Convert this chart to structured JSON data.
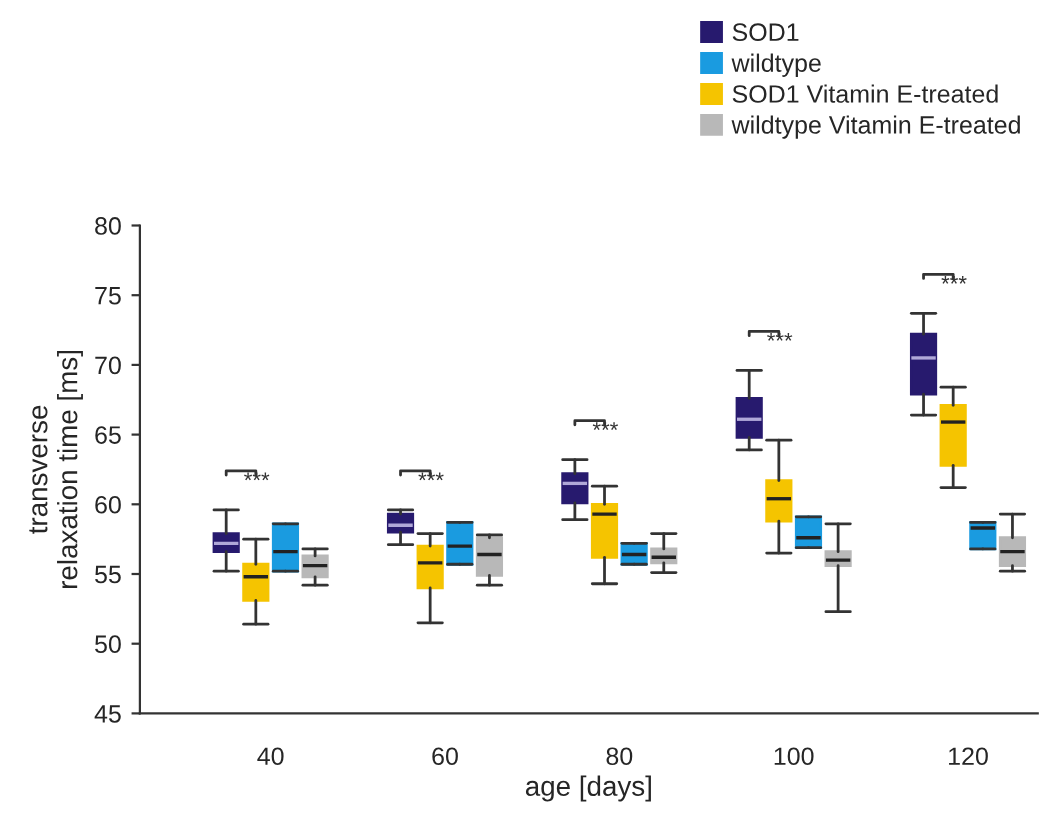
{
  "chart_data": {
    "type": "box",
    "xlabel": "age [days]",
    "ylabel": "transverse\nrelaxation time [ms]",
    "categories": [
      "40",
      "60",
      "80",
      "100",
      "120"
    ],
    "ylim": [
      45,
      80
    ],
    "yticks": [
      45,
      50,
      55,
      60,
      65,
      70,
      75,
      80
    ],
    "grid": false,
    "legend": "top right",
    "series": [
      {
        "name": "SOD1",
        "color": "#271a6e",
        "boxes": [
          {
            "low": 55.2,
            "q1": 56.6,
            "median": 57.2,
            "q3": 57.9,
            "high": 59.6
          },
          {
            "low": 57.1,
            "q1": 58.0,
            "median": 58.5,
            "q3": 59.3,
            "high": 59.6
          },
          {
            "low": 58.9,
            "q1": 60.1,
            "median": 61.5,
            "q3": 62.2,
            "high": 63.2
          },
          {
            "low": 63.9,
            "q1": 64.8,
            "median": 66.1,
            "q3": 67.6,
            "high": 69.6
          },
          {
            "low": 66.4,
            "q1": 67.9,
            "median": 70.5,
            "q3": 72.2,
            "high": 73.7
          }
        ]
      },
      {
        "name": "wildtype",
        "color": "#1a9be0",
        "boxes": [
          {
            "low": 55.2,
            "q1": 55.2,
            "median": 56.6,
            "q3": 58.6,
            "high": 58.6
          },
          {
            "low": 55.7,
            "q1": 55.7,
            "median": 57.0,
            "q3": 58.7,
            "high": 58.7
          },
          {
            "low": 55.7,
            "q1": 55.7,
            "median": 56.4,
            "q3": 57.2,
            "high": 57.2
          },
          {
            "low": 56.9,
            "q1": 56.9,
            "median": 57.6,
            "q3": 59.1,
            "high": 59.1
          },
          {
            "low": 56.8,
            "q1": 56.8,
            "median": 58.3,
            "q3": 58.7,
            "high": 58.7
          }
        ]
      },
      {
        "name": "SOD1 Vitamin E-treated",
        "color": "#f5c400",
        "boxes": [
          {
            "low": 51.4,
            "q1": 53.1,
            "median": 54.8,
            "q3": 55.7,
            "high": 57.5
          },
          {
            "low": 51.5,
            "q1": 54.0,
            "median": 55.8,
            "q3": 57.0,
            "high": 57.9
          },
          {
            "low": 54.3,
            "q1": 56.2,
            "median": 59.3,
            "q3": 60.0,
            "high": 61.3
          },
          {
            "low": 56.5,
            "q1": 58.8,
            "median": 60.4,
            "q3": 61.7,
            "high": 64.6
          },
          {
            "low": 61.2,
            "q1": 62.8,
            "median": 65.9,
            "q3": 67.1,
            "high": 68.4
          }
        ]
      },
      {
        "name": "wildtype Vitamin E-treated",
        "color": "#b8b8b8",
        "boxes": [
          {
            "low": 54.2,
            "q1": 54.8,
            "median": 55.6,
            "q3": 56.3,
            "high": 56.8
          },
          {
            "low": 54.2,
            "q1": 54.9,
            "median": 56.4,
            "q3": 57.6,
            "high": 57.8
          },
          {
            "low": 55.1,
            "q1": 55.8,
            "median": 56.2,
            "q3": 56.8,
            "high": 57.9
          },
          {
            "low": 52.3,
            "q1": 55.6,
            "median": 56.0,
            "q3": 56.6,
            "high": 58.6
          },
          {
            "low": 55.2,
            "q1": 55.6,
            "median": 56.6,
            "q3": 57.6,
            "high": 59.3
          }
        ]
      }
    ],
    "annotations": [
      "***",
      "***",
      "***",
      "***",
      "***"
    ]
  }
}
